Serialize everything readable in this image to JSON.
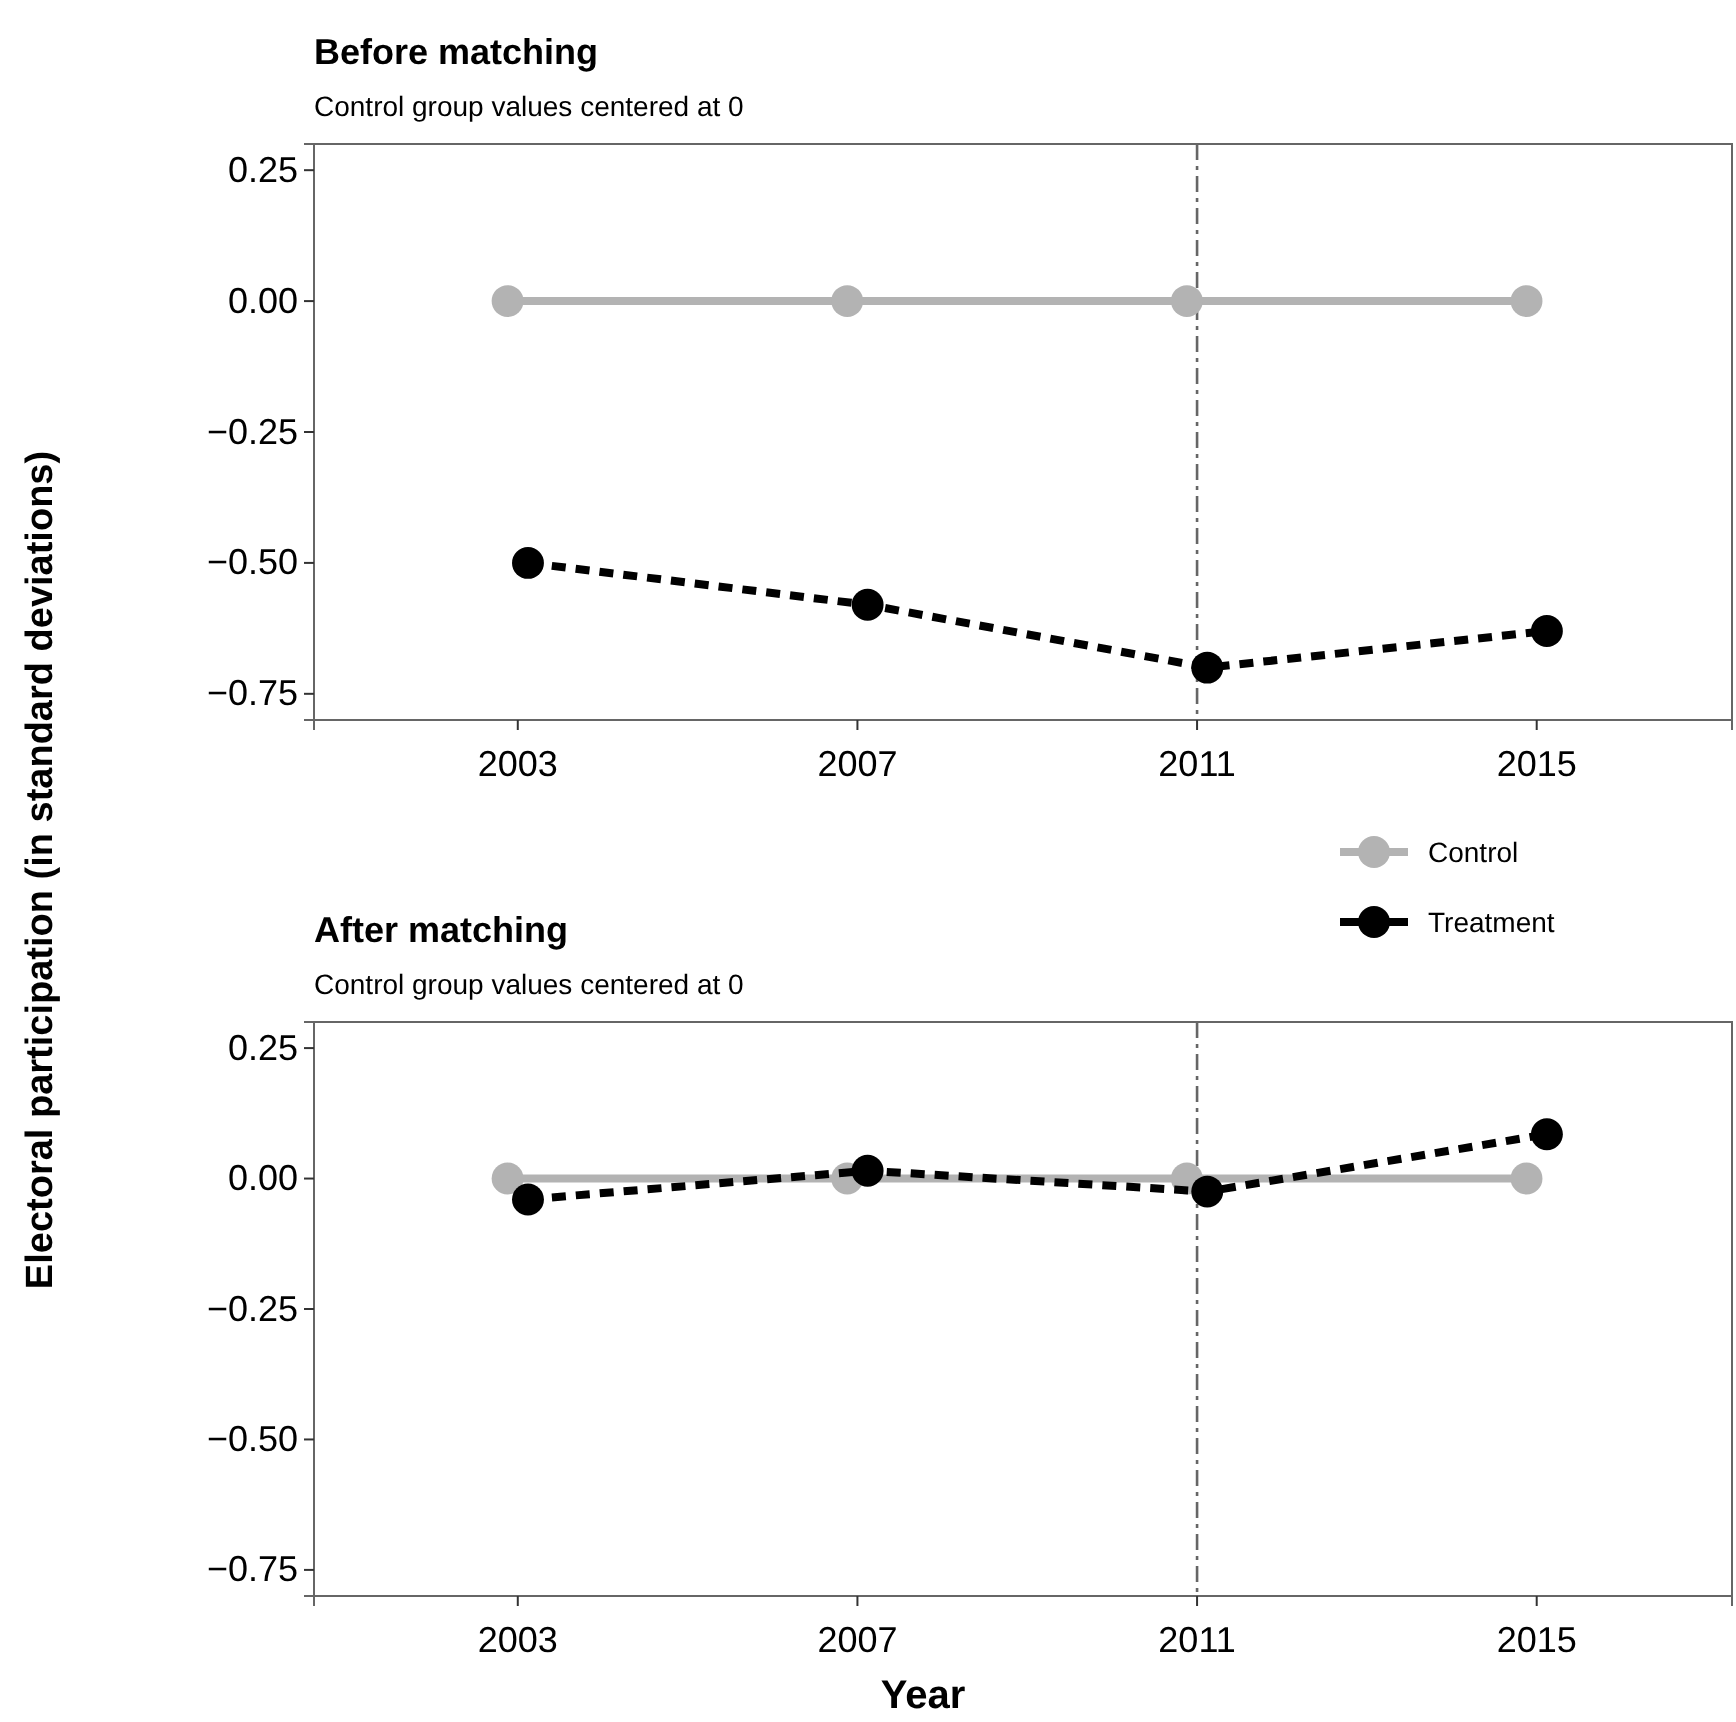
{
  "chart_data": [
    {
      "type": "line",
      "title": "Before matching",
      "subtitle": "Control group values centered at 0",
      "ylabel": "Electoral participation  (in standard deviations)",
      "xlim": [
        2000.6,
        2017.3
      ],
      "xticks": [
        2003,
        2007,
        2011,
        2015
      ],
      "ylim": [
        -0.8,
        0.3
      ],
      "yticks": [
        {
          "value": 0.25,
          "label": "0.25"
        },
        {
          "value": 0,
          "label": "0.00"
        },
        {
          "value": -0.25,
          "label": "−0.25"
        },
        {
          "value": -0.5,
          "label": "−0.50"
        },
        {
          "value": -0.75,
          "label": "−0.75"
        }
      ],
      "grid": false,
      "legend": "bottom right",
      "marker": "circle",
      "ref_lines": [
        {
          "axis": "x",
          "value": 2011,
          "color": "#666666",
          "line_style": "dashed"
        }
      ],
      "series": [
        {
          "name": "Control",
          "color": "#b3b3b3",
          "line_style": "solid",
          "x": [
            2002.88,
            2006.88,
            2010.88,
            2014.88
          ],
          "values": [
            0,
            0,
            0,
            0
          ]
        },
        {
          "name": "Treatment",
          "color": "#000000",
          "line_style": "dashed",
          "x": [
            2003.12,
            2007.12,
            2011.12,
            2015.12
          ],
          "values": [
            -0.5,
            -0.58,
            -0.7,
            -0.63
          ]
        }
      ]
    },
    {
      "type": "line",
      "title": "After matching",
      "subtitle": "Control group values centered at 0",
      "xlabel": "Year",
      "xlim": [
        2000.6,
        2017.3
      ],
      "xticks": [
        2003,
        2007,
        2011,
        2015
      ],
      "ylim": [
        -0.8,
        0.3
      ],
      "yticks": [
        {
          "value": 0.25,
          "label": "0.25"
        },
        {
          "value": 0,
          "label": "0.00"
        },
        {
          "value": -0.25,
          "label": "−0.25"
        },
        {
          "value": -0.5,
          "label": "−0.50"
        },
        {
          "value": -0.75,
          "label": "−0.75"
        }
      ],
      "grid": false,
      "marker": "circle",
      "ref_lines": [
        {
          "axis": "x",
          "value": 2011,
          "color": "#666666",
          "line_style": "dashed"
        }
      ],
      "series": [
        {
          "color": "#b3b3b3",
          "line_style": "solid",
          "x": [
            2002.88,
            2006.88,
            2010.88,
            2014.88
          ],
          "values": [
            0,
            0,
            0,
            0
          ]
        },
        {
          "color": "#000000",
          "line_style": "dashed",
          "x": [
            2003.12,
            2007.12,
            2011.12,
            2015.12
          ],
          "values": [
            -0.04,
            0.015,
            -0.025,
            0.085
          ]
        }
      ]
    }
  ]
}
